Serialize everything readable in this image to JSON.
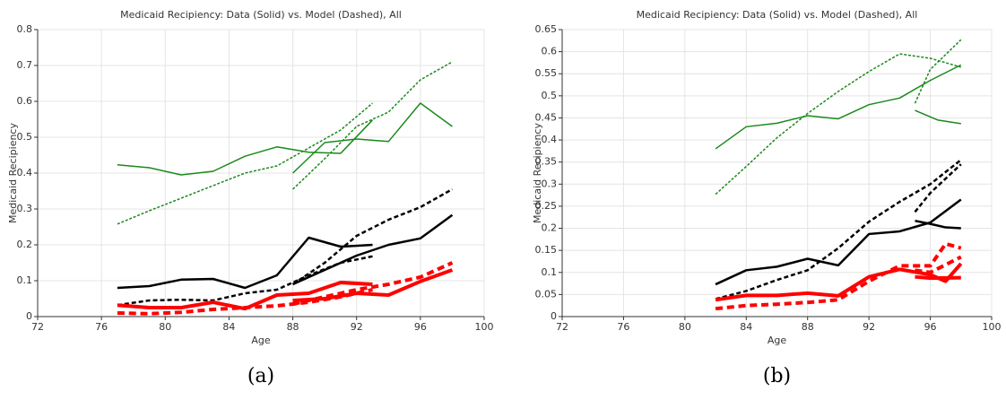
{
  "chart_data": [
    {
      "type": "line",
      "title": "Medicaid Recipiency: Data (Solid) vs. Model (Dashed), All",
      "xlabel": "Age",
      "ylabel": "Medicaid Recipiency",
      "caption": "(a)",
      "xlim": [
        72,
        100
      ],
      "xticks": [
        72,
        76,
        80,
        84,
        88,
        92,
        96,
        100
      ],
      "ylim": [
        0,
        0.8
      ],
      "yticks": [
        0,
        0.1,
        0.2,
        0.3,
        0.4,
        0.5,
        0.6,
        0.7,
        0.8
      ],
      "grid": true,
      "series": [
        {
          "color": "#1a8a1a",
          "dash": false,
          "linewidth": 1.5,
          "x": [
            77,
            79,
            81,
            83,
            85,
            87,
            89,
            91,
            93
          ],
          "values": [
            0.423,
            0.415,
            0.395,
            0.405,
            0.447,
            0.473,
            0.458,
            0.455,
            0.548
          ]
        },
        {
          "color": "#1a8a1a",
          "dash": false,
          "linewidth": 1.5,
          "x": [
            88,
            90,
            92,
            94,
            96,
            98
          ],
          "values": [
            0.4,
            0.485,
            0.495,
            0.488,
            0.595,
            0.53
          ]
        },
        {
          "color": "#1a8a1a",
          "dash": true,
          "linewidth": 1.5,
          "x": [
            77,
            79,
            81,
            83,
            85,
            87,
            89,
            91,
            93
          ],
          "values": [
            0.258,
            0.295,
            0.33,
            0.365,
            0.4,
            0.42,
            0.47,
            0.52,
            0.595
          ]
        },
        {
          "color": "#1a8a1a",
          "dash": true,
          "linewidth": 1.5,
          "x": [
            88,
            90,
            92,
            94,
            96,
            98
          ],
          "values": [
            0.355,
            0.44,
            0.53,
            0.57,
            0.66,
            0.71
          ]
        },
        {
          "color": "#000000",
          "dash": false,
          "linewidth": 2.5,
          "x": [
            77,
            79,
            81,
            83,
            85,
            87,
            89,
            91,
            93
          ],
          "values": [
            0.08,
            0.085,
            0.103,
            0.105,
            0.08,
            0.115,
            0.22,
            0.195,
            0.2
          ]
        },
        {
          "color": "#000000",
          "dash": false,
          "linewidth": 2.5,
          "x": [
            88,
            90,
            92,
            94,
            96,
            98
          ],
          "values": [
            0.09,
            0.13,
            0.17,
            0.2,
            0.218,
            0.283
          ]
        },
        {
          "color": "#000000",
          "dash": true,
          "linewidth": 2.5,
          "x": [
            77,
            79,
            81,
            83,
            85,
            87,
            89,
            91,
            93
          ],
          "values": [
            0.032,
            0.045,
            0.047,
            0.045,
            0.065,
            0.075,
            0.115,
            0.15,
            0.168
          ]
        },
        {
          "color": "#000000",
          "dash": true,
          "linewidth": 2.5,
          "x": [
            88,
            90,
            92,
            94,
            96,
            98
          ],
          "values": [
            0.09,
            0.15,
            0.225,
            0.27,
            0.305,
            0.355
          ]
        },
        {
          "color": "#ff0000",
          "dash": false,
          "linewidth": 4,
          "x": [
            77,
            79,
            81,
            83,
            85,
            87,
            89,
            91,
            93
          ],
          "values": [
            0.032,
            0.025,
            0.025,
            0.04,
            0.022,
            0.06,
            0.065,
            0.095,
            0.09
          ]
        },
        {
          "color": "#ff0000",
          "dash": false,
          "linewidth": 4,
          "x": [
            88,
            90,
            92,
            94,
            96,
            98
          ],
          "values": [
            0.045,
            0.05,
            0.065,
            0.06,
            0.098,
            0.13
          ]
        },
        {
          "color": "#ff0000",
          "dash": true,
          "linewidth": 4,
          "x": [
            77,
            79,
            81,
            83,
            85,
            87,
            89,
            91,
            93
          ],
          "values": [
            0.01,
            0.008,
            0.012,
            0.02,
            0.025,
            0.03,
            0.04,
            0.055,
            0.075
          ]
        },
        {
          "color": "#ff0000",
          "dash": true,
          "linewidth": 4,
          "x": [
            88,
            90,
            92,
            94,
            96,
            98
          ],
          "values": [
            0.035,
            0.055,
            0.075,
            0.09,
            0.11,
            0.15
          ]
        }
      ]
    },
    {
      "type": "line",
      "title": "Medicaid Recipiency: Data (Solid) vs. Model (Dashed), All",
      "xlabel": "Age",
      "ylabel": "Medicaid Recipiency",
      "caption": "(b)",
      "xlim": [
        72,
        100
      ],
      "xticks": [
        72,
        76,
        80,
        84,
        88,
        92,
        96,
        100
      ],
      "ylim": [
        0,
        0.65
      ],
      "yticks": [
        0,
        0.05,
        0.1,
        0.15,
        0.2,
        0.25,
        0.3,
        0.35,
        0.4,
        0.45,
        0.5,
        0.55,
        0.6,
        0.65
      ],
      "grid": true,
      "series": [
        {
          "color": "#1a8a1a",
          "dash": false,
          "linewidth": 1.5,
          "x": [
            82,
            84,
            86,
            88,
            90,
            92,
            94,
            96,
            98
          ],
          "values": [
            0.38,
            0.43,
            0.438,
            0.455,
            0.448,
            0.48,
            0.495,
            0.535,
            0.57
          ]
        },
        {
          "color": "#1a8a1a",
          "dash": false,
          "linewidth": 1.5,
          "x": [
            95,
            96.5,
            98
          ],
          "values": [
            0.467,
            0.445,
            0.437
          ]
        },
        {
          "color": "#1a8a1a",
          "dash": true,
          "linewidth": 1.5,
          "x": [
            82,
            84,
            86,
            88,
            90,
            92,
            94,
            96,
            98
          ],
          "values": [
            0.277,
            0.34,
            0.405,
            0.46,
            0.51,
            0.555,
            0.595,
            0.585,
            0.565
          ]
        },
        {
          "color": "#1a8a1a",
          "dash": true,
          "linewidth": 1.5,
          "x": [
            95,
            96,
            98
          ],
          "values": [
            0.483,
            0.56,
            0.627
          ]
        },
        {
          "color": "#000000",
          "dash": false,
          "linewidth": 2.5,
          "x": [
            82,
            84,
            86,
            88,
            90,
            92,
            94,
            96,
            98
          ],
          "values": [
            0.073,
            0.105,
            0.113,
            0.131,
            0.116,
            0.187,
            0.193,
            0.213,
            0.265
          ]
        },
        {
          "color": "#000000",
          "dash": false,
          "linewidth": 2.5,
          "x": [
            95,
            96,
            97,
            98
          ],
          "values": [
            0.217,
            0.21,
            0.202,
            0.2
          ]
        },
        {
          "color": "#000000",
          "dash": true,
          "linewidth": 2.5,
          "x": [
            82,
            84,
            86,
            88,
            90,
            92,
            94,
            96,
            98
          ],
          "values": [
            0.04,
            0.058,
            0.083,
            0.105,
            0.155,
            0.215,
            0.26,
            0.3,
            0.355
          ]
        },
        {
          "color": "#000000",
          "dash": true,
          "linewidth": 2.5,
          "x": [
            95,
            96,
            98
          ],
          "values": [
            0.237,
            0.28,
            0.345
          ]
        },
        {
          "color": "#ff0000",
          "dash": false,
          "linewidth": 4,
          "x": [
            82,
            84,
            86,
            88,
            90,
            92,
            94,
            96,
            97,
            98
          ],
          "values": [
            0.038,
            0.048,
            0.048,
            0.053,
            0.047,
            0.09,
            0.107,
            0.095,
            0.08,
            0.12
          ]
        },
        {
          "color": "#ff0000",
          "dash": false,
          "linewidth": 4,
          "x": [
            95,
            96,
            98
          ],
          "values": [
            0.09,
            0.087,
            0.088
          ]
        },
        {
          "color": "#ff0000",
          "dash": true,
          "linewidth": 4,
          "x": [
            82,
            84,
            86,
            88,
            90,
            92,
            94,
            96,
            97,
            98
          ],
          "values": [
            0.018,
            0.025,
            0.028,
            0.032,
            0.038,
            0.08,
            0.115,
            0.115,
            0.165,
            0.155
          ]
        },
        {
          "color": "#ff0000",
          "dash": true,
          "linewidth": 4,
          "x": [
            95,
            96,
            98
          ],
          "values": [
            0.105,
            0.1,
            0.135
          ]
        }
      ]
    }
  ]
}
